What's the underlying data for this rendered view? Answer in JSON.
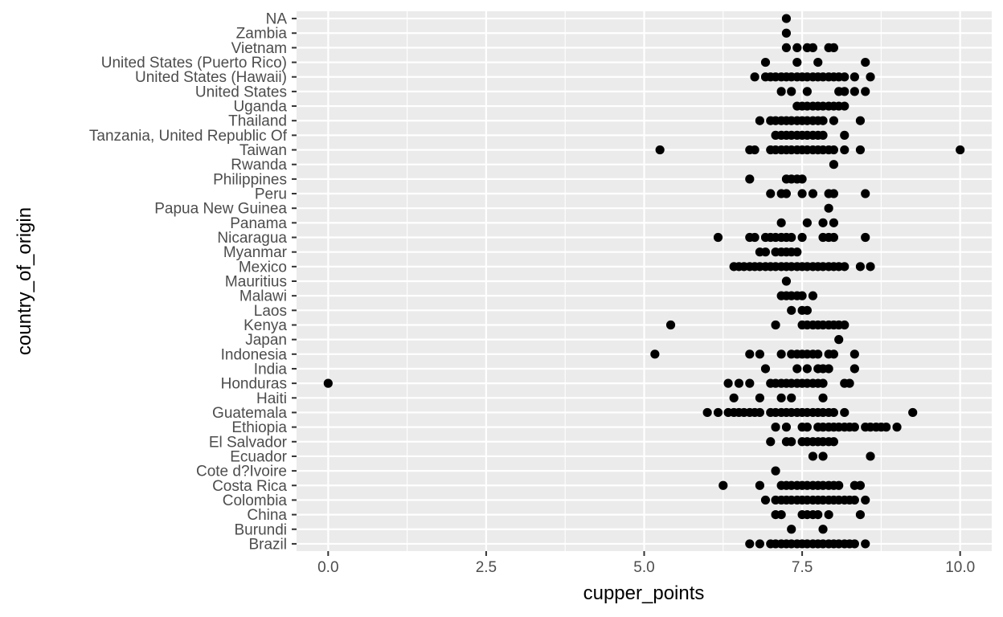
{
  "chart_data": {
    "type": "scatter",
    "xlabel": "cupper_points",
    "ylabel": "country_of_origin",
    "xlim": [
      -0.5,
      10.5
    ],
    "x_ticks": [
      0.0,
      2.5,
      5.0,
      7.5,
      10.0
    ],
    "x_tick_labels": [
      "0.0",
      "2.5",
      "5.0",
      "7.5",
      "10.0"
    ],
    "grid": true,
    "legend": "none",
    "colors": {
      "panel": "#ebebeb",
      "grid_major": "#ffffff",
      "point": "#000000",
      "tick_text": "#4d4d4d",
      "tick_mark": "#333333"
    },
    "categories": [
      "Brazil",
      "Burundi",
      "China",
      "Colombia",
      "Costa Rica",
      "Cote d?Ivoire",
      "Ecuador",
      "El Salvador",
      "Ethiopia",
      "Guatemala",
      "Haiti",
      "Honduras",
      "India",
      "Indonesia",
      "Japan",
      "Kenya",
      "Laos",
      "Malawi",
      "Mauritius",
      "Mexico",
      "Myanmar",
      "Nicaragua",
      "Panama",
      "Papua New Guinea",
      "Peru",
      "Philippines",
      "Rwanda",
      "Taiwan",
      "Tanzania, United Republic Of",
      "Thailand",
      "Uganda",
      "United States",
      "United States (Hawaii)",
      "United States (Puerto Rico)",
      "Vietnam",
      "Zambia",
      "NA"
    ],
    "points": {
      "Brazil": [
        6.67,
        6.83,
        7.0,
        7.08,
        7.17,
        7.25,
        7.33,
        7.42,
        7.5,
        7.58,
        7.67,
        7.75,
        7.83,
        7.92,
        8.0,
        8.08,
        8.17,
        8.25,
        8.33,
        8.5
      ],
      "Burundi": [
        7.33,
        7.83
      ],
      "China": [
        7.08,
        7.17,
        7.5,
        7.58,
        7.67,
        7.75,
        7.92,
        8.42
      ],
      "Colombia": [
        6.92,
        7.08,
        7.17,
        7.25,
        7.33,
        7.42,
        7.5,
        7.58,
        7.67,
        7.75,
        7.83,
        7.92,
        8.0,
        8.08,
        8.17,
        8.25,
        8.33,
        8.5
      ],
      "Costa Rica": [
        6.25,
        6.83,
        7.17,
        7.25,
        7.33,
        7.42,
        7.5,
        7.58,
        7.67,
        7.75,
        7.83,
        7.92,
        8.0,
        8.08,
        8.33,
        8.42
      ],
      "Cote d?Ivoire": [
        7.08
      ],
      "Ecuador": [
        7.67,
        7.83,
        8.58
      ],
      "El Salvador": [
        7.0,
        7.25,
        7.33,
        7.5,
        7.58,
        7.67,
        7.75,
        7.83,
        7.92,
        8.0
      ],
      "Ethiopia": [
        7.08,
        7.25,
        7.5,
        7.58,
        7.75,
        7.83,
        7.92,
        8.0,
        8.08,
        8.17,
        8.25,
        8.33,
        8.5,
        8.58,
        8.67,
        8.75,
        8.83,
        9.0
      ],
      "Guatemala": [
        6.0,
        6.17,
        6.33,
        6.42,
        6.5,
        6.58,
        6.67,
        6.75,
        6.83,
        7.0,
        7.08,
        7.17,
        7.25,
        7.33,
        7.42,
        7.5,
        7.58,
        7.67,
        7.75,
        7.83,
        7.92,
        8.0,
        8.17,
        9.25
      ],
      "Haiti": [
        6.42,
        6.83,
        7.17,
        7.33,
        7.83
      ],
      "Honduras": [
        0.0,
        6.33,
        6.5,
        6.67,
        7.0,
        7.08,
        7.17,
        7.25,
        7.33,
        7.42,
        7.5,
        7.58,
        7.67,
        7.75,
        7.83,
        8.17,
        8.25
      ],
      "India": [
        6.92,
        7.42,
        7.58,
        7.75,
        7.83,
        7.92,
        8.33
      ],
      "Indonesia": [
        5.17,
        6.67,
        6.83,
        7.17,
        7.33,
        7.42,
        7.5,
        7.58,
        7.67,
        7.75,
        7.92,
        8.0,
        8.33
      ],
      "Japan": [
        8.08
      ],
      "Kenya": [
        5.42,
        7.08,
        7.5,
        7.58,
        7.67,
        7.75,
        7.83,
        7.92,
        8.0,
        8.08,
        8.17
      ],
      "Laos": [
        7.33,
        7.5,
        7.58
      ],
      "Malawi": [
        7.17,
        7.25,
        7.33,
        7.42,
        7.5,
        7.67
      ],
      "Mauritius": [
        7.25
      ],
      "Mexico": [
        6.42,
        6.5,
        6.58,
        6.67,
        6.75,
        6.83,
        6.92,
        7.0,
        7.08,
        7.17,
        7.25,
        7.33,
        7.42,
        7.5,
        7.58,
        7.67,
        7.75,
        7.83,
        7.92,
        8.0,
        8.08,
        8.17,
        8.42,
        8.58
      ],
      "Myanmar": [
        6.83,
        6.92,
        7.08,
        7.17,
        7.25,
        7.33,
        7.42
      ],
      "Nicaragua": [
        6.17,
        6.67,
        6.75,
        6.92,
        7.0,
        7.08,
        7.17,
        7.25,
        7.33,
        7.5,
        7.83,
        7.92,
        8.0,
        8.5
      ],
      "Panama": [
        7.17,
        7.58,
        7.83,
        8.0
      ],
      "Papua New Guinea": [
        7.92
      ],
      "Peru": [
        7.0,
        7.17,
        7.25,
        7.5,
        7.67,
        7.92,
        8.0,
        8.5
      ],
      "Philippines": [
        6.67,
        7.25,
        7.33,
        7.42,
        7.5
      ],
      "Rwanda": [
        8.0
      ],
      "Taiwan": [
        5.25,
        6.67,
        6.75,
        7.0,
        7.08,
        7.17,
        7.25,
        7.33,
        7.42,
        7.5,
        7.58,
        7.67,
        7.75,
        7.83,
        7.92,
        8.0,
        8.17,
        8.42,
        10.0
      ],
      "Tanzania, United Republic Of": [
        7.08,
        7.17,
        7.25,
        7.33,
        7.42,
        7.5,
        7.58,
        7.67,
        7.75,
        7.83,
        8.17
      ],
      "Thailand": [
        6.83,
        7.0,
        7.08,
        7.17,
        7.25,
        7.33,
        7.42,
        7.5,
        7.58,
        7.67,
        7.75,
        7.83,
        8.0,
        8.42
      ],
      "Uganda": [
        7.42,
        7.5,
        7.58,
        7.67,
        7.75,
        7.83,
        7.92,
        8.0,
        8.08,
        8.17
      ],
      "United States": [
        7.17,
        7.33,
        7.58,
        8.08,
        8.17,
        8.33,
        8.5
      ],
      "United States (Hawaii)": [
        6.75,
        6.92,
        7.0,
        7.08,
        7.17,
        7.25,
        7.33,
        7.42,
        7.5,
        7.58,
        7.67,
        7.75,
        7.83,
        7.92,
        8.0,
        8.08,
        8.17,
        8.33,
        8.58
      ],
      "United States (Puerto Rico)": [
        6.92,
        7.42,
        7.75,
        8.5
      ],
      "Vietnam": [
        7.25,
        7.42,
        7.58,
        7.67,
        7.92,
        8.0
      ],
      "Zambia": [
        7.25
      ],
      "NA": [
        7.25
      ]
    }
  }
}
